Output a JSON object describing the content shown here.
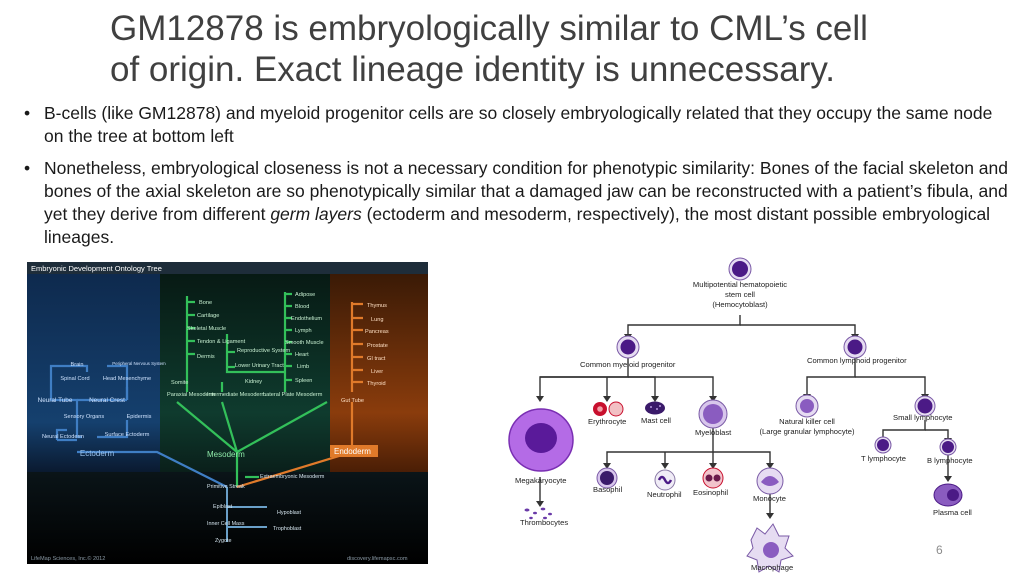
{
  "slide": {
    "title_line1": "GM12878 is embryologically similar to CML’s cell",
    "title_line2": "of origin. Exact lineage identity is unnecessary.",
    "bullet1": "B-cells (like GM12878) and myeloid progenitor cells are so closely embryologically related that they occupy the same node on the tree at bottom left",
    "bullet2_part1": "Nonetheless, embryological closeness is not a necessary condition for phenotypic similarity: Bones of the facial skeleton and bones of the axial skeleton are so phenotypically similar that a damaged jaw can be reconstructed with a patient’s fibula, and yet they derive from different ",
    "bullet2_em": "germ layers",
    "bullet2_part2": " (ectoderm and mesoderm, respectively), the most distant possible embryological lineages.",
    "page_number": "6"
  },
  "ontology_tree": {
    "title": "Embryonic Development Ontology Tree",
    "footer_left": "LifeMap Sciences, Inc.© 2012",
    "footer_right": "discovery.lifemapsc.com",
    "colors": {
      "ectoderm_bg": "#13335a",
      "mesoderm_bg": "#0f3a2e",
      "endoderm_bg": "#8a3c0c",
      "ecto_line": "#3f7ec4",
      "meso_line": "#33c05a",
      "endo_line": "#e07a2a"
    },
    "ectoderm": {
      "layer": "Ectoderm",
      "labels": [
        "Brain",
        "Peripheral Nervous System",
        "Spinal Cord",
        "Head Mesenchyme",
        "Neural Tube",
        "Neural Crest",
        "Sensory Organs",
        "Epidermis",
        "Neural Ectoderm",
        "Surface Ectoderm"
      ]
    },
    "mesoderm": {
      "layer": "Mesoderm",
      "col1": [
        "Bone",
        "Cartilage",
        "Skeletal Muscle",
        "Tendon & Ligament",
        "Dermis"
      ],
      "col2": [
        "Reproductive System",
        "Lower Urinary Tract",
        "Kidney"
      ],
      "col3": [
        "Adipose",
        "Blood",
        "Endothelium",
        "Lymph",
        "Smooth Muscle",
        "Heart",
        "Limb",
        "Spleen"
      ],
      "somite": "Somite",
      "paraxial": "Paraxial Mesoderm",
      "intermediate": "Intermediate Mesoderm",
      "lateral": "Lateral Plate Mesoderm"
    },
    "endoderm": {
      "layer": "Endoderm",
      "labels": [
        "Thymus",
        "Lung",
        "Pancreas",
        "Prostate",
        "GI tract",
        "Liver",
        "Thyroid",
        "Gut Tube"
      ]
    },
    "early": [
      "Extraembryonic Mesoderm",
      "Primitive Streak",
      "Epiblast",
      "Hypoblast",
      "Inner Cell Mass",
      "Trophoblast",
      "Zygote"
    ]
  },
  "hematopoiesis": {
    "stem": [
      "Multipotential hematopoietic",
      "stem cell",
      "(Hemocytoblast)"
    ],
    "myeloid_progenitor": "Common myeloid progenitor",
    "lymphoid_progenitor": "Common lymphoid progenitor",
    "megakaryocyte": "Megakaryocyte",
    "thrombocytes": "Thrombocytes",
    "erythrocyte": "Erythrocyte",
    "mast_cell": "Mast cell",
    "myeloblast": "Myeloblast",
    "basophil": "Basophil",
    "neutrophil": "Neutrophil",
    "eosinophil": "Eosinophil",
    "monocyte": "Monocyte",
    "macrophage": "Macrophage",
    "nk_cell": [
      "Natural killer cell",
      "(Large granular lymphocyte)"
    ],
    "small_lymphocyte": "Small lymphocyte",
    "t_lymphocyte": "T lymphocyte",
    "b_lymphocyte": "B lymphocyte",
    "plasma_cell": "Plasma cell",
    "colors": {
      "nucleus": "#4b1a86",
      "cytoplasm": "#e6dcf2",
      "megakaryocyte": "#b46be6",
      "erythrocyte": "#c8102e"
    }
  }
}
